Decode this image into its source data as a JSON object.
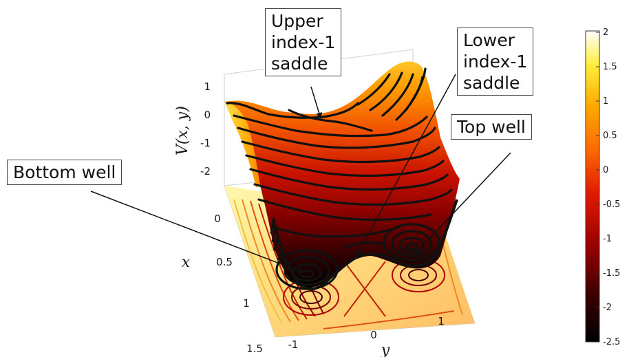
{
  "chart_data": {
    "type": "surface",
    "zlabel": "V(x, y)",
    "xlabel": "x",
    "ylabel": "y",
    "x_ticks": [
      "0",
      "0.5",
      "1",
      "1.5"
    ],
    "y_ticks": [
      "-1",
      "0",
      "1"
    ],
    "z_ticks": [
      "1",
      "0",
      "-1",
      "-2"
    ],
    "xlim": [
      0,
      1.5
    ],
    "ylim": [
      -1.5,
      1.5
    ],
    "zlim": [
      -2.5,
      2
    ],
    "colormap": "hot",
    "colorbar": {
      "ticks": [
        "2",
        "1.5",
        "1",
        "0.5",
        "0",
        "-0.5",
        "-1",
        "-1.5",
        "-2",
        "-2.5"
      ],
      "range": [
        -2.5,
        2
      ]
    },
    "annotations": [
      {
        "id": "upper",
        "text": "Upper index-1 saddle",
        "lines": [
          "Upper",
          "index-1",
          "saddle"
        ]
      },
      {
        "id": "lower",
        "text": "Lower index-1 saddle",
        "lines": [
          "Lower",
          "index-1",
          "saddle"
        ]
      },
      {
        "id": "top",
        "text": "Top well",
        "lines": [
          "Top well"
        ]
      },
      {
        "id": "bottom",
        "text": "Bottom well",
        "lines": [
          "Bottom well"
        ]
      }
    ]
  }
}
